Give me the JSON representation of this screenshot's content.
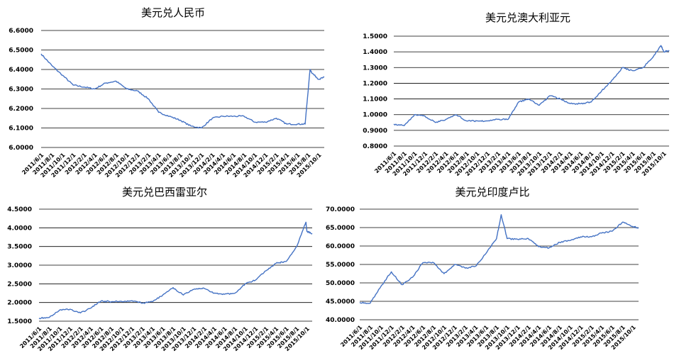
{
  "colors": {
    "line": "#4472C4",
    "grid": "#000000",
    "text": "#000000"
  },
  "x_ticks": [
    "2011/6/1",
    "2011/8/1",
    "2011/10/1",
    "2011/12/1",
    "2012/2/1",
    "2012/4/1",
    "2012/6/1",
    "2012/8/1",
    "2012/10/1",
    "2012/12/1",
    "2013/2/1",
    "2013/4/1",
    "2013/6/1",
    "2013/8/1",
    "2013/10/1",
    "2013/12/1",
    "2014/2/1",
    "2014/4/1",
    "2014/6/1",
    "2014/8/1",
    "2014/10/1",
    "2014/12/1",
    "2015/2/1",
    "2015/4/1",
    "2015/6/1",
    "2015/8/1",
    "2015/10/1"
  ],
  "chart_data": [
    {
      "type": "line",
      "title": "美元兑人民币",
      "xlabel": "",
      "ylabel": "",
      "ylim": [
        6.0,
        6.6
      ],
      "y_ticks": [
        "6.0000",
        "6.1000",
        "6.2000",
        "6.3000",
        "6.4000",
        "6.5000",
        "6.6000"
      ],
      "grid": true,
      "x": [
        "2011/6/1",
        "2011/8/1",
        "2011/10/1",
        "2011/12/1",
        "2012/2/1",
        "2012/4/1",
        "2012/6/1",
        "2012/8/1",
        "2012/10/1",
        "2012/12/1",
        "2013/2/1",
        "2013/4/1",
        "2013/6/1",
        "2013/8/1",
        "2013/10/1",
        "2013/12/1",
        "2014/2/1",
        "2014/4/1",
        "2014/6/1",
        "2014/8/1",
        "2014/10/1",
        "2014/12/1",
        "2015/2/1",
        "2015/4/1",
        "2015/6/1",
        "2015/7/15",
        "2015/8/12",
        "2015/8/25",
        "2015/10/1",
        "2015/11/1"
      ],
      "series": [
        {
          "values": [
            6.48,
            6.42,
            6.37,
            6.32,
            6.31,
            6.3,
            6.33,
            6.34,
            6.3,
            6.29,
            6.25,
            6.18,
            6.16,
            6.14,
            6.11,
            6.1,
            6.15,
            6.16,
            6.16,
            6.16,
            6.13,
            6.13,
            6.15,
            6.12,
            6.12,
            6.12,
            6.4,
            6.38,
            6.35,
            6.36
          ]
        }
      ]
    },
    {
      "type": "line",
      "title": "美元兑澳大利亚元",
      "xlabel": "",
      "ylabel": "",
      "ylim": [
        0.8,
        1.5
      ],
      "y_ticks": [
        "0.8000",
        "0.9000",
        "1.0000",
        "1.1000",
        "1.2000",
        "1.3000",
        "1.4000",
        "1.5000"
      ],
      "grid": true,
      "x": [
        "2011/6/1",
        "2011/8/1",
        "2011/10/1",
        "2011/12/1",
        "2012/2/1",
        "2012/4/1",
        "2012/6/1",
        "2012/8/1",
        "2012/10/1",
        "2012/12/1",
        "2013/2/1",
        "2013/4/1",
        "2013/6/1",
        "2013/8/1",
        "2013/10/1",
        "2013/12/1",
        "2014/2/1",
        "2014/4/1",
        "2014/6/1",
        "2014/8/1",
        "2014/10/1",
        "2014/12/1",
        "2015/2/1",
        "2015/4/1",
        "2015/6/1",
        "2015/8/1",
        "2015/9/15",
        "2015/10/1",
        "2015/11/1"
      ],
      "series": [
        {
          "values": [
            0.94,
            0.93,
            1.0,
            0.99,
            0.95,
            0.97,
            1.0,
            0.96,
            0.96,
            0.96,
            0.97,
            0.97,
            1.08,
            1.1,
            1.06,
            1.12,
            1.1,
            1.07,
            1.07,
            1.08,
            1.15,
            1.22,
            1.3,
            1.28,
            1.3,
            1.37,
            1.44,
            1.4,
            1.41
          ]
        }
      ]
    },
    {
      "type": "line",
      "title": "美元兑巴西雷亚尔",
      "xlabel": "",
      "ylabel": "",
      "ylim": [
        1.5,
        4.5
      ],
      "y_ticks": [
        "1.5000",
        "2.0000",
        "2.5000",
        "3.0000",
        "3.5000",
        "4.0000",
        "4.5000"
      ],
      "grid": true,
      "x": [
        "2011/6/1",
        "2011/8/1",
        "2011/10/1",
        "2011/12/1",
        "2012/2/1",
        "2012/4/1",
        "2012/6/1",
        "2012/8/1",
        "2012/10/1",
        "2012/12/1",
        "2013/2/1",
        "2013/4/1",
        "2013/6/1",
        "2013/8/1",
        "2013/10/1",
        "2013/12/1",
        "2014/2/1",
        "2014/4/1",
        "2014/6/1",
        "2014/8/1",
        "2014/10/1",
        "2014/12/1",
        "2015/2/1",
        "2015/4/1",
        "2015/6/1",
        "2015/8/1",
        "2015/9/25",
        "2015/10/1",
        "2015/11/1"
      ],
      "series": [
        {
          "values": [
            1.58,
            1.6,
            1.8,
            1.82,
            1.72,
            1.85,
            2.04,
            2.02,
            2.03,
            2.05,
            1.98,
            2.02,
            2.2,
            2.4,
            2.2,
            2.35,
            2.38,
            2.25,
            2.22,
            2.25,
            2.5,
            2.6,
            2.85,
            3.05,
            3.1,
            3.5,
            4.15,
            3.9,
            3.85
          ]
        }
      ]
    },
    {
      "type": "line",
      "title": "美元兑印度卢比",
      "xlabel": "",
      "ylabel": "",
      "ylim": [
        40,
        70
      ],
      "y_ticks": [
        "40.0000",
        "45.0000",
        "50.0000",
        "55.0000",
        "60.0000",
        "65.0000",
        "70.0000"
      ],
      "grid": true,
      "x": [
        "2011/6/1",
        "2011/8/1",
        "2011/10/1",
        "2011/12/1",
        "2012/2/1",
        "2012/4/1",
        "2012/6/1",
        "2012/8/1",
        "2012/10/1",
        "2012/12/1",
        "2013/2/1",
        "2013/4/1",
        "2013/6/1",
        "2013/8/1",
        "2013/8/28",
        "2013/10/1",
        "2013/12/1",
        "2014/2/1",
        "2014/4/1",
        "2014/6/1",
        "2014/8/1",
        "2014/10/1",
        "2014/12/1",
        "2015/2/1",
        "2015/4/1",
        "2015/6/1",
        "2015/8/1",
        "2015/10/1",
        "2015/11/1"
      ],
      "series": [
        {
          "values": [
            44.7,
            44.5,
            49.0,
            53.0,
            49.5,
            51.5,
            55.5,
            55.5,
            52.5,
            55.0,
            54.0,
            54.5,
            58.0,
            62.0,
            68.5,
            62.0,
            61.8,
            62.0,
            59.8,
            59.5,
            61.0,
            61.5,
            62.5,
            62.5,
            63.5,
            64.0,
            66.5,
            65.2,
            65.0
          ]
        }
      ]
    }
  ]
}
